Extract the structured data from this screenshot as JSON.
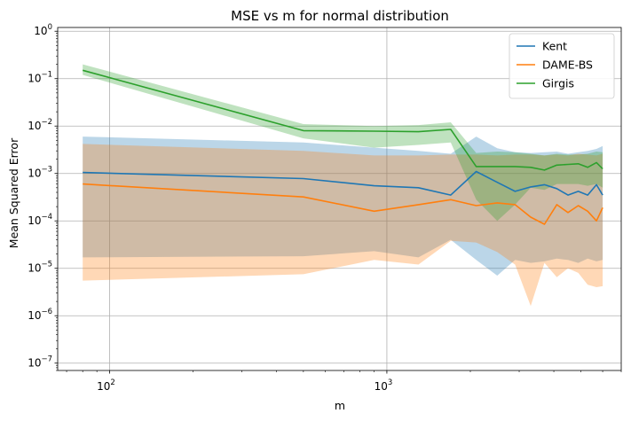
{
  "chart_data": {
    "type": "line",
    "title": "MSE vs m for normal distribution",
    "xlabel": "m",
    "ylabel": "Mean Squared Error",
    "xscale": "log",
    "yscale": "log",
    "xlim": [
      65,
      7000
    ],
    "ylim": [
      7e-08,
      1.2
    ],
    "grid": true,
    "legend_position": "top-right",
    "x_ticks": [
      {
        "value": 100,
        "base": "10",
        "exp": "2"
      },
      {
        "value": 1000,
        "base": "10",
        "exp": "3"
      }
    ],
    "y_ticks": [
      {
        "value": 1e-07,
        "base": "10",
        "exp": "−7"
      },
      {
        "value": 1e-06,
        "base": "10",
        "exp": "−6"
      },
      {
        "value": 1e-05,
        "base": "10",
        "exp": "−5"
      },
      {
        "value": 0.0001,
        "base": "10",
        "exp": "−4"
      },
      {
        "value": 0.001,
        "base": "10",
        "exp": "−3"
      },
      {
        "value": 0.01,
        "base": "10",
        "exp": "−2"
      },
      {
        "value": 0.1,
        "base": "10",
        "exp": "−1"
      },
      {
        "value": 1,
        "base": "10",
        "exp": "0"
      }
    ],
    "series": [
      {
        "name": "Kent",
        "color": "#1f77b4",
        "x": [
          80,
          500,
          900,
          1300,
          1700,
          2100,
          2500,
          2900,
          3300,
          3700,
          4100,
          4500,
          4900,
          5300,
          5700,
          6000
        ],
        "y": [
          0.00105,
          0.00078,
          0.00055,
          0.0005,
          0.00035,
          0.0011,
          0.00065,
          0.00042,
          0.00052,
          0.00058,
          0.00048,
          0.00035,
          0.00042,
          0.00035,
          0.00058,
          0.00035
        ],
        "lower": [
          1.7e-05,
          1.8e-05,
          2.3e-05,
          1.7e-05,
          4e-05,
          1.5e-05,
          7e-06,
          1.5e-05,
          1.3e-05,
          1.4e-05,
          1.6e-05,
          1.5e-05,
          1.3e-05,
          1.6e-05,
          1.4e-05,
          1.5e-05
        ],
        "upper": [
          0.006,
          0.0045,
          0.0035,
          0.003,
          0.0026,
          0.006,
          0.0034,
          0.0028,
          0.0027,
          0.0028,
          0.0029,
          0.0026,
          0.0028,
          0.003,
          0.0033,
          0.0038
        ]
      },
      {
        "name": "DAME-BS",
        "color": "#ff7f0e",
        "x": [
          80,
          500,
          900,
          1300,
          1700,
          2100,
          2500,
          2900,
          3300,
          3700,
          4100,
          4500,
          4900,
          5300,
          5700,
          6000
        ],
        "y": [
          0.0006,
          0.00032,
          0.00016,
          0.00022,
          0.00028,
          0.00021,
          0.00024,
          0.00022,
          0.00012,
          8.5e-05,
          0.00022,
          0.00015,
          0.00021,
          0.00016,
          0.0001,
          0.00019
        ],
        "lower": [
          5.5e-06,
          7.5e-06,
          1.5e-05,
          1.2e-05,
          3.8e-05,
          3.5e-05,
          2.2e-05,
          1.2e-05,
          1.6e-06,
          1.3e-05,
          6.5e-06,
          1e-05,
          8e-06,
          4.5e-06,
          4e-06,
          4.2e-06
        ],
        "upper": [
          0.0042,
          0.003,
          0.0024,
          0.0024,
          0.0025,
          0.0025,
          0.0024,
          0.0025,
          0.0025,
          0.0024,
          0.0025,
          0.0024,
          0.0026,
          0.0025,
          0.0024,
          0.0026
        ]
      },
      {
        "name": "Girgis",
        "color": "#2ca02c",
        "x": [
          80,
          500,
          900,
          1300,
          1700,
          2100,
          2500,
          2900,
          3300,
          3700,
          4100,
          4500,
          4900,
          5300,
          5700,
          6000
        ],
        "y": [
          0.15,
          0.008,
          0.0078,
          0.0076,
          0.0085,
          0.0014,
          0.0014,
          0.0014,
          0.00135,
          0.00118,
          0.0015,
          0.00155,
          0.0016,
          0.00135,
          0.0017,
          0.00125
        ],
        "lower": [
          0.12,
          0.0055,
          0.0035,
          0.004,
          0.0045,
          0.00028,
          0.0001,
          0.00022,
          0.0005,
          0.00045,
          0.0006,
          0.0006,
          0.0006,
          0.00055,
          0.0006,
          0.0005
        ],
        "upper": [
          0.2,
          0.011,
          0.01,
          0.0105,
          0.012,
          0.0027,
          0.0029,
          0.0028,
          0.0026,
          0.0024,
          0.0026,
          0.0025,
          0.0025,
          0.0026,
          0.0029,
          0.0028
        ]
      }
    ]
  }
}
